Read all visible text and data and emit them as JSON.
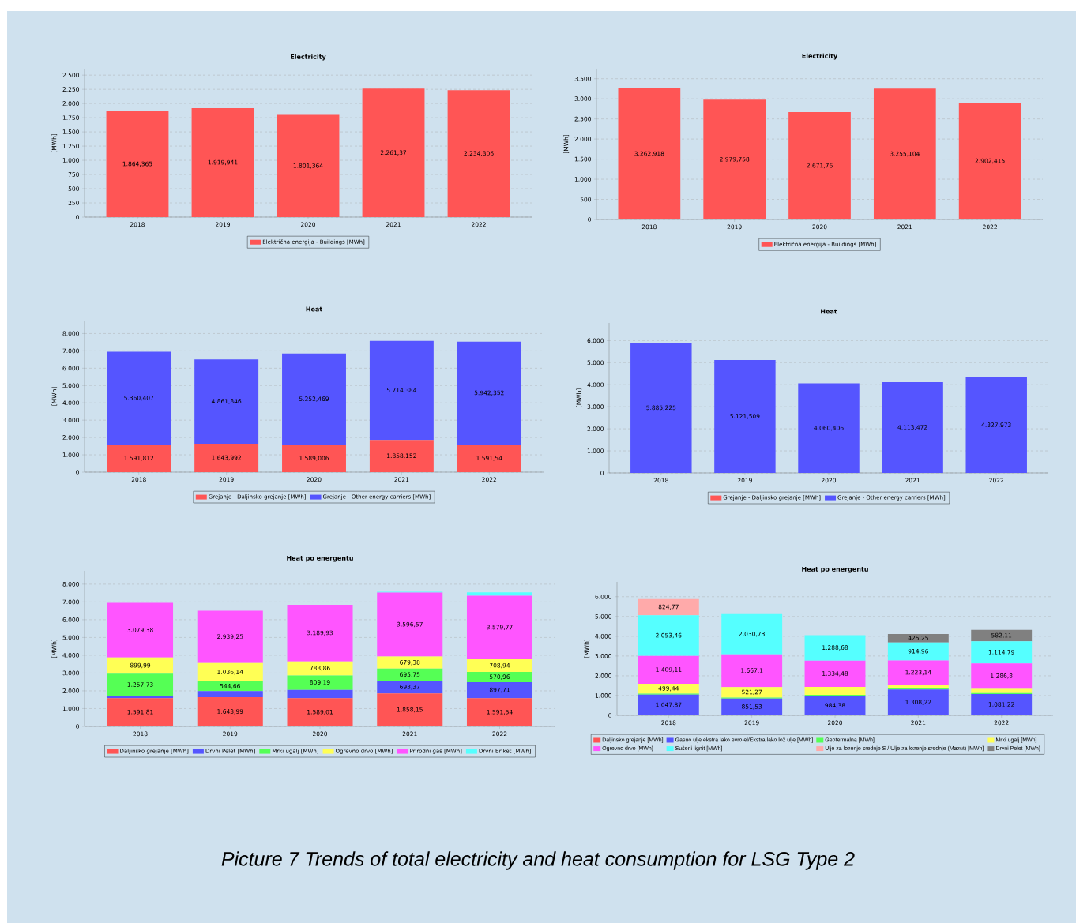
{
  "chart_data": [
    {
      "type": "bar",
      "title": "Electricity",
      "ylabel": "[MWh]",
      "categories": [
        "2018",
        "2019",
        "2020",
        "2021",
        "2022"
      ],
      "series": [
        {
          "name": "Električna energija - Buildings [MWh]",
          "color": "#ff5555",
          "values": [
            1864.365,
            1919.941,
            1801.364,
            2261.37,
            2234.306
          ],
          "value_labels": [
            "1.864,365",
            "1.919,941",
            "1.801,364",
            "2.261,37",
            "2.234,306"
          ]
        }
      ],
      "ylim": [
        0,
        2600
      ],
      "yticks": [
        0,
        250,
        500,
        750,
        {
          "value": 1000,
          "label": "1.000"
        },
        {
          "value": 1250,
          "label": "1.250"
        },
        {
          "value": 1500,
          "label": "1.500"
        },
        {
          "value": 1750,
          "label": "1.750"
        },
        {
          "value": 2000,
          "label": "2.000"
        },
        {
          "value": 2250,
          "label": "2.250"
        },
        {
          "value": 2500,
          "label": "2.500"
        }
      ],
      "grid": "y",
      "legend": "bottom"
    },
    {
      "type": "bar",
      "title": "Electricity",
      "ylabel": "[MWh]",
      "categories": [
        "2018",
        "2019",
        "2020",
        "2021",
        "2022"
      ],
      "series": [
        {
          "name": "Električna energija - Buildings [MWh]",
          "color": "#ff5555",
          "values": [
            3262.918,
            2979.758,
            2671.76,
            3255.104,
            2902.415
          ],
          "value_labels": [
            "3.262,918",
            "2.979,758",
            "2.671,76",
            "3.255,104",
            "2.902,415"
          ]
        }
      ],
      "ylim": [
        0,
        3750
      ],
      "yticks": [
        0,
        500,
        {
          "value": 1000,
          "label": "1.000"
        },
        {
          "value": 1500,
          "label": "1.500"
        },
        {
          "value": 2000,
          "label": "2.000"
        },
        {
          "value": 2500,
          "label": "2.500"
        },
        {
          "value": 3000,
          "label": "3.000"
        },
        {
          "value": 3500,
          "label": "3.500"
        }
      ],
      "grid": "y",
      "legend": "bottom"
    },
    {
      "type": "bar",
      "stacked": true,
      "title": "Heat",
      "ylabel": "[MWh]",
      "categories": [
        "2018",
        "2019",
        "2020",
        "2021",
        "2022"
      ],
      "series": [
        {
          "name": "Grejanje - Daljinsko grejanje [MWh]",
          "color": "#ff5555",
          "values": [
            1591.812,
            1643.992,
            1589.006,
            1858.152,
            1591.54
          ],
          "value_labels": [
            "1.591,812",
            "1.643,992",
            "1.589,006",
            "1.858,152",
            "1.591,54"
          ]
        },
        {
          "name": "Grejanje - Other energy carriers [MWh]",
          "color": "#5555ff",
          "values": [
            5360.407,
            4861.846,
            5252.469,
            5714.384,
            5942.352
          ],
          "value_labels": [
            "5.360,407",
            "4.861,846",
            "5.252,469",
            "5.714,384",
            "5.942,352"
          ]
        }
      ],
      "ylim": [
        0,
        8750
      ],
      "yticks": [
        0,
        {
          "value": 1000,
          "label": "1.000"
        },
        {
          "value": 2000,
          "label": "2.000"
        },
        {
          "value": 3000,
          "label": "3.000"
        },
        {
          "value": 4000,
          "label": "4.000"
        },
        {
          "value": 5000,
          "label": "5.000"
        },
        {
          "value": 6000,
          "label": "6.000"
        },
        {
          "value": 7000,
          "label": "7.000"
        },
        {
          "value": 8000,
          "label": "8.000"
        }
      ],
      "grid": "y",
      "legend": "bottom"
    },
    {
      "type": "bar",
      "stacked": true,
      "title": "Heat",
      "ylabel": "[MWh]",
      "categories": [
        "2018",
        "2019",
        "2020",
        "2021",
        "2022"
      ],
      "series": [
        {
          "name": "Grejanje - Daljinsko grejanje [MWh]",
          "color": "#ff5555",
          "values": [
            null,
            null,
            null,
            null,
            null
          ]
        },
        {
          "name": "Grejanje - Other energy carriers [MWh]",
          "color": "#5555ff",
          "values": [
            5885.225,
            5121.509,
            4060.406,
            4113.472,
            4327.973
          ],
          "value_labels": [
            "5.885,225",
            "5.121,509",
            "4.060,406",
            "4.113,472",
            "4.327,973"
          ]
        }
      ],
      "ylim": [
        0,
        6800
      ],
      "yticks": [
        0,
        {
          "value": 1000,
          "label": "1.000"
        },
        {
          "value": 2000,
          "label": "2.000"
        },
        {
          "value": 3000,
          "label": "3.000"
        },
        {
          "value": 4000,
          "label": "4.000"
        },
        {
          "value": 5000,
          "label": "5.000"
        },
        {
          "value": 6000,
          "label": "6.000"
        }
      ],
      "grid": "y",
      "legend": "bottom"
    },
    {
      "type": "bar",
      "stacked": true,
      "title": "Heat po energentu",
      "ylabel": "[MWh]",
      "categories": [
        "2018",
        "2019",
        "2020",
        "2021",
        "2022"
      ],
      "series": [
        {
          "name": "Daljinsko grejanje [MWh]",
          "color": "#ff5555",
          "values": [
            1591.81,
            1643.99,
            1589.01,
            1858.15,
            1591.54
          ],
          "value_labels": [
            "1.591,81",
            "1.643,99",
            "1.589,01",
            "1.858,15",
            "1.591,54"
          ]
        },
        {
          "name": "Drvni Pelet [MWh]",
          "color": "#5555ff",
          "values": [
            120,
            340,
            470,
            693.37,
            897.71
          ],
          "value_labels": [
            null,
            null,
            null,
            "693,37",
            "897,71"
          ]
        },
        {
          "name": "Mrki ugalj [MWh]",
          "color": "#55ff55",
          "values": [
            1257.73,
            544.66,
            809.19,
            695.75,
            570.96
          ],
          "value_labels": [
            "1.257,73",
            "544,66",
            "809,19",
            "695,75",
            "570,96"
          ]
        },
        {
          "name": "Ogrevno drvo [MWh]",
          "color": "#ffff55",
          "values": [
            899.99,
            1036.14,
            783.86,
            679.38,
            708.94
          ],
          "value_labels": [
            "899,99",
            "1.036,14",
            "783,86",
            "679,38",
            "708,94"
          ]
        },
        {
          "name": "Prirodni gas [MWh]",
          "color": "#ff55ff",
          "values": [
            3079.38,
            2939.25,
            3189.93,
            3596.57,
            3579.77
          ],
          "value_labels": [
            "3.079,38",
            "2.939,25",
            "3.189,93",
            "3.596,57",
            "3.579,77"
          ]
        },
        {
          "name": "Drvni Briket [MWh]",
          "color": "#55ffff",
          "values": [
            null,
            null,
            null,
            50,
            190
          ]
        }
      ],
      "ylim": [
        0,
        8750
      ],
      "yticks": [
        0,
        {
          "value": 1000,
          "label": "1.000"
        },
        {
          "value": 2000,
          "label": "2.000"
        },
        {
          "value": 3000,
          "label": "3.000"
        },
        {
          "value": 4000,
          "label": "4.000"
        },
        {
          "value": 5000,
          "label": "5.000"
        },
        {
          "value": 6000,
          "label": "6.000"
        },
        {
          "value": 7000,
          "label": "7.000"
        },
        {
          "value": 8000,
          "label": "8.000"
        }
      ],
      "grid": "y",
      "legend": "bottom"
    },
    {
      "type": "bar",
      "stacked": true,
      "title": "Heat po energentu",
      "ylabel": "[MWh]",
      "categories": [
        "2018",
        "2019",
        "2020",
        "2021",
        "2022"
      ],
      "series": [
        {
          "name": "Daljinsko grejanje [MWh]",
          "color": "#ff5555",
          "values": [
            null,
            null,
            null,
            null,
            null
          ]
        },
        {
          "name": "Gasno ulje ekstra lako evro el/Ekstra lako lož ulje [MWh]",
          "color": "#5555ff",
          "values": [
            1047.87,
            851.53,
            984.38,
            1308.22,
            1081.22
          ],
          "value_labels": [
            "1.047,87",
            "851,53",
            "984,38",
            "1.308,22",
            "1.081,22"
          ]
        },
        {
          "name": "Geotermalna [MWh]",
          "color": "#55ff55",
          "values": [
            50,
            50,
            50,
            50,
            50
          ]
        },
        {
          "name": "Mrki ugalj [MWh]",
          "color": "#ffff55",
          "values": [
            499.44,
            521.27,
            400,
            190,
            210
          ],
          "value_labels": [
            "499,44",
            "521,27",
            null,
            null,
            null
          ]
        },
        {
          "name": "Ogrevno drvo [MWh]",
          "color": "#ff55ff",
          "values": [
            1409.11,
            1667.1,
            1334.48,
            1223.14,
            1286.8
          ],
          "value_labels": [
            "1.409,11",
            "1.667,1",
            "1.334,48",
            "1.223,14",
            "1.286,8"
          ]
        },
        {
          "name": "Sušeni lignit [MWh]",
          "color": "#55ffff",
          "values": [
            2053.46,
            2030.73,
            1288.68,
            914.96,
            1114.79
          ],
          "value_labels": [
            "2.053,46",
            "2.030,73",
            "1.288,68",
            "914,96",
            "1.114,79"
          ]
        },
        {
          "name": "Ulje za lozenje srednje S / Ulje za lozenje srednje (Mazut) [MWh]",
          "color": "#ffaaaa",
          "values": [
            824.77,
            null,
            null,
            null,
            null
          ],
          "value_labels": [
            "824,77",
            null,
            null,
            null,
            null
          ]
        },
        {
          "name": "Drvni Pelet [MWh]",
          "color": "#808080",
          "values": [
            null,
            null,
            null,
            425.25,
            582.11
          ],
          "value_labels": [
            null,
            null,
            null,
            "425,25",
            "582,11"
          ]
        }
      ],
      "ylim": [
        0,
        6750
      ],
      "yticks": [
        0,
        {
          "value": 1000,
          "label": "1.000"
        },
        {
          "value": 2000,
          "label": "2.000"
        },
        {
          "value": 3000,
          "label": "3.000"
        },
        {
          "value": 4000,
          "label": "4.000"
        },
        {
          "value": 5000,
          "label": "5.000"
        },
        {
          "value": 6000,
          "label": "6.000"
        }
      ],
      "grid": "y",
      "legend": "bottom",
      "annotations": [
        "Picture 7 Trends of total electricity and heat consumption for LSG Type 2"
      ]
    }
  ]
}
